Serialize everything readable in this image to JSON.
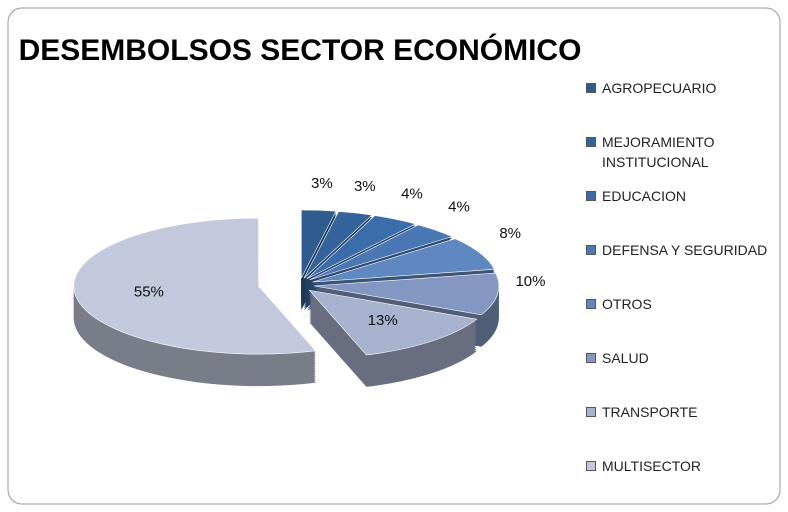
{
  "chart_data": {
    "type": "pie",
    "title": "DESEMBOLSOS SECTOR ECONÓMICO",
    "categories": [
      "AGROPECUARIO",
      "MEJORAMIENTO INSTITUCIONAL",
      "EDUCACION",
      "DEFENSA Y SEGURIDAD",
      "OTROS",
      "SALUD",
      "TRANSPORTE",
      "MULTISECTOR"
    ],
    "values": [
      3,
      3,
      4,
      4,
      8,
      10,
      13,
      55
    ],
    "value_labels": [
      "3%",
      "3%",
      "4%",
      "4%",
      "8%",
      "10%",
      "13%",
      "55%"
    ],
    "colors": [
      "#2f5b8e",
      "#35649c",
      "#3c6dab",
      "#4a78b5",
      "#5f88c0",
      "#8397c2",
      "#a7b2cf",
      "#c3c9dc"
    ],
    "legend": "right"
  }
}
